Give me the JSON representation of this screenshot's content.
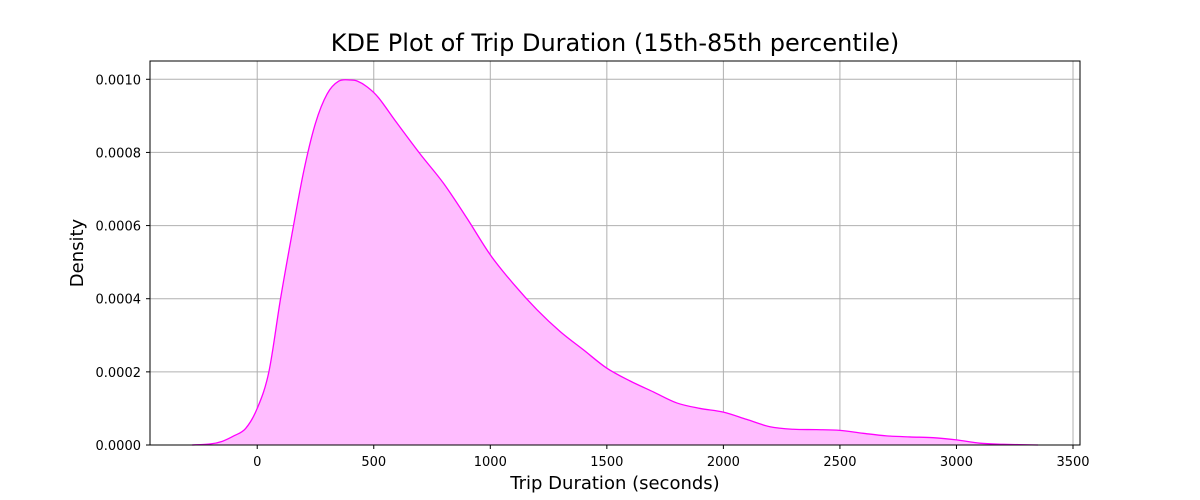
{
  "chart_data": {
    "type": "area",
    "title": "KDE Plot of Trip Duration (15th-85th percentile)",
    "xlabel": "Trip Duration (seconds)",
    "ylabel": "Density",
    "xlim": [
      -460,
      3530
    ],
    "ylim": [
      0,
      0.00105
    ],
    "xticks": [
      0,
      500,
      1000,
      1500,
      2000,
      2500,
      3000,
      3500
    ],
    "yticks": [
      0.0,
      0.0002,
      0.0004,
      0.0006,
      0.0008,
      0.001
    ],
    "xtick_labels": [
      "0",
      "500",
      "1000",
      "1500",
      "2000",
      "2500",
      "3000",
      "3500"
    ],
    "ytick_labels": [
      "0.0000",
      "0.0002",
      "0.0004",
      "0.0006",
      "0.0008",
      "0.0010"
    ],
    "grid": true,
    "colors": {
      "line": "#ff00ff",
      "fill": "#ffbdff"
    },
    "series": [
      {
        "x": [
          -280,
          -200,
          -150,
          -100,
          -50,
          0,
          50,
          100,
          150,
          200,
          250,
          300,
          350,
          400,
          430,
          470,
          520,
          600,
          700,
          800,
          900,
          1000,
          1100,
          1200,
          1300,
          1400,
          1500,
          1600,
          1700,
          1800,
          1900,
          2000,
          2100,
          2200,
          2300,
          2400,
          2500,
          2600,
          2700,
          2800,
          2900,
          3000,
          3100,
          3200,
          3350
        ],
        "y": [
          0.0,
          3e-06,
          1e-05,
          2.5e-05,
          4.5e-05,
          0.0001,
          0.0002,
          0.0004,
          0.00058,
          0.00075,
          0.00088,
          0.00096,
          0.000995,
          0.000998,
          0.000995,
          0.00098,
          0.00095,
          0.00088,
          0.000795,
          0.000715,
          0.00062,
          0.00052,
          0.00044,
          0.00037,
          0.00031,
          0.00026,
          0.00021,
          0.000175,
          0.000145,
          0.000115,
          0.0001,
          9e-05,
          7e-05,
          5e-05,
          4.3e-05,
          4.2e-05,
          4e-05,
          3.2e-05,
          2.5e-05,
          2.2e-05,
          2e-05,
          1.4e-05,
          5e-06,
          2e-06,
          0.0
        ]
      }
    ]
  }
}
